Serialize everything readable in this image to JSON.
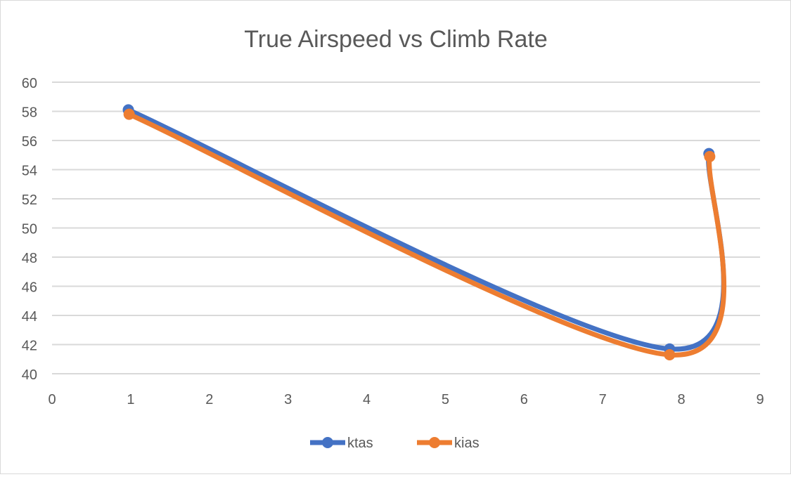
{
  "chart_data": {
    "type": "scatter",
    "title": "True Airspeed vs Climb Rate",
    "xlabel": "",
    "ylabel": "",
    "xlim": [
      0,
      9
    ],
    "ylim": [
      40,
      60
    ],
    "xticks": [
      0,
      1,
      2,
      3,
      4,
      5,
      6,
      7,
      8,
      9
    ],
    "yticks": [
      40,
      42,
      44,
      46,
      48,
      50,
      52,
      54,
      56,
      58,
      60
    ],
    "grid": "horizontal",
    "smoothed": true,
    "legend": "bottom",
    "series": [
      {
        "name": "ktas",
        "color": "#4472c4",
        "x": [
          0.97,
          7.85,
          8.35
        ],
        "y": [
          58.1,
          41.7,
          55.1
        ]
      },
      {
        "name": "kias",
        "color": "#ed7d31",
        "x": [
          0.98,
          7.85,
          8.36
        ],
        "y": [
          57.8,
          41.3,
          54.9
        ]
      }
    ]
  }
}
